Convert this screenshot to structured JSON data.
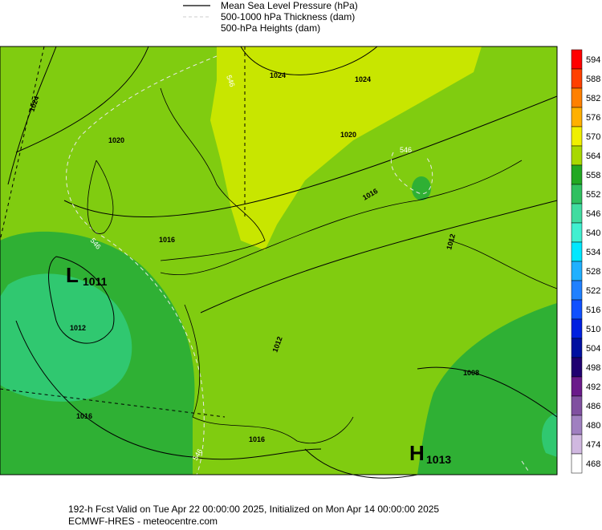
{
  "legend": {
    "items": [
      "Mean Sea Level Pressure (hPa)",
      "500-1000 hPa Thickness (dam)",
      "500-hPa Heights (dam)"
    ]
  },
  "colorbar": {
    "labels": [
      594,
      588,
      582,
      576,
      570,
      564,
      558,
      552,
      546,
      540,
      534,
      528,
      522,
      516,
      510,
      504,
      498,
      492,
      486,
      480,
      474,
      468
    ]
  },
  "map": {
    "isobar_labels": [
      "1024",
      "1020",
      "1024",
      "1024",
      "1020",
      "1016",
      "1016",
      "1012",
      "1012",
      "1012",
      "1016",
      "1016",
      "1008"
    ],
    "thickness_labels": [
      "546",
      "546",
      "546",
      "546"
    ],
    "centers": [
      {
        "letter": "L",
        "value": "1011"
      },
      {
        "letter": "H",
        "value": "1013"
      }
    ]
  },
  "footer": {
    "lines": [
      "192-h Fcst Valid on Tue Apr 22 00:00:00 2025, Initialized on Mon Apr 14 00:00:00 2025",
      "ECMWF-HRES  - meteocentre.com"
    ]
  }
}
